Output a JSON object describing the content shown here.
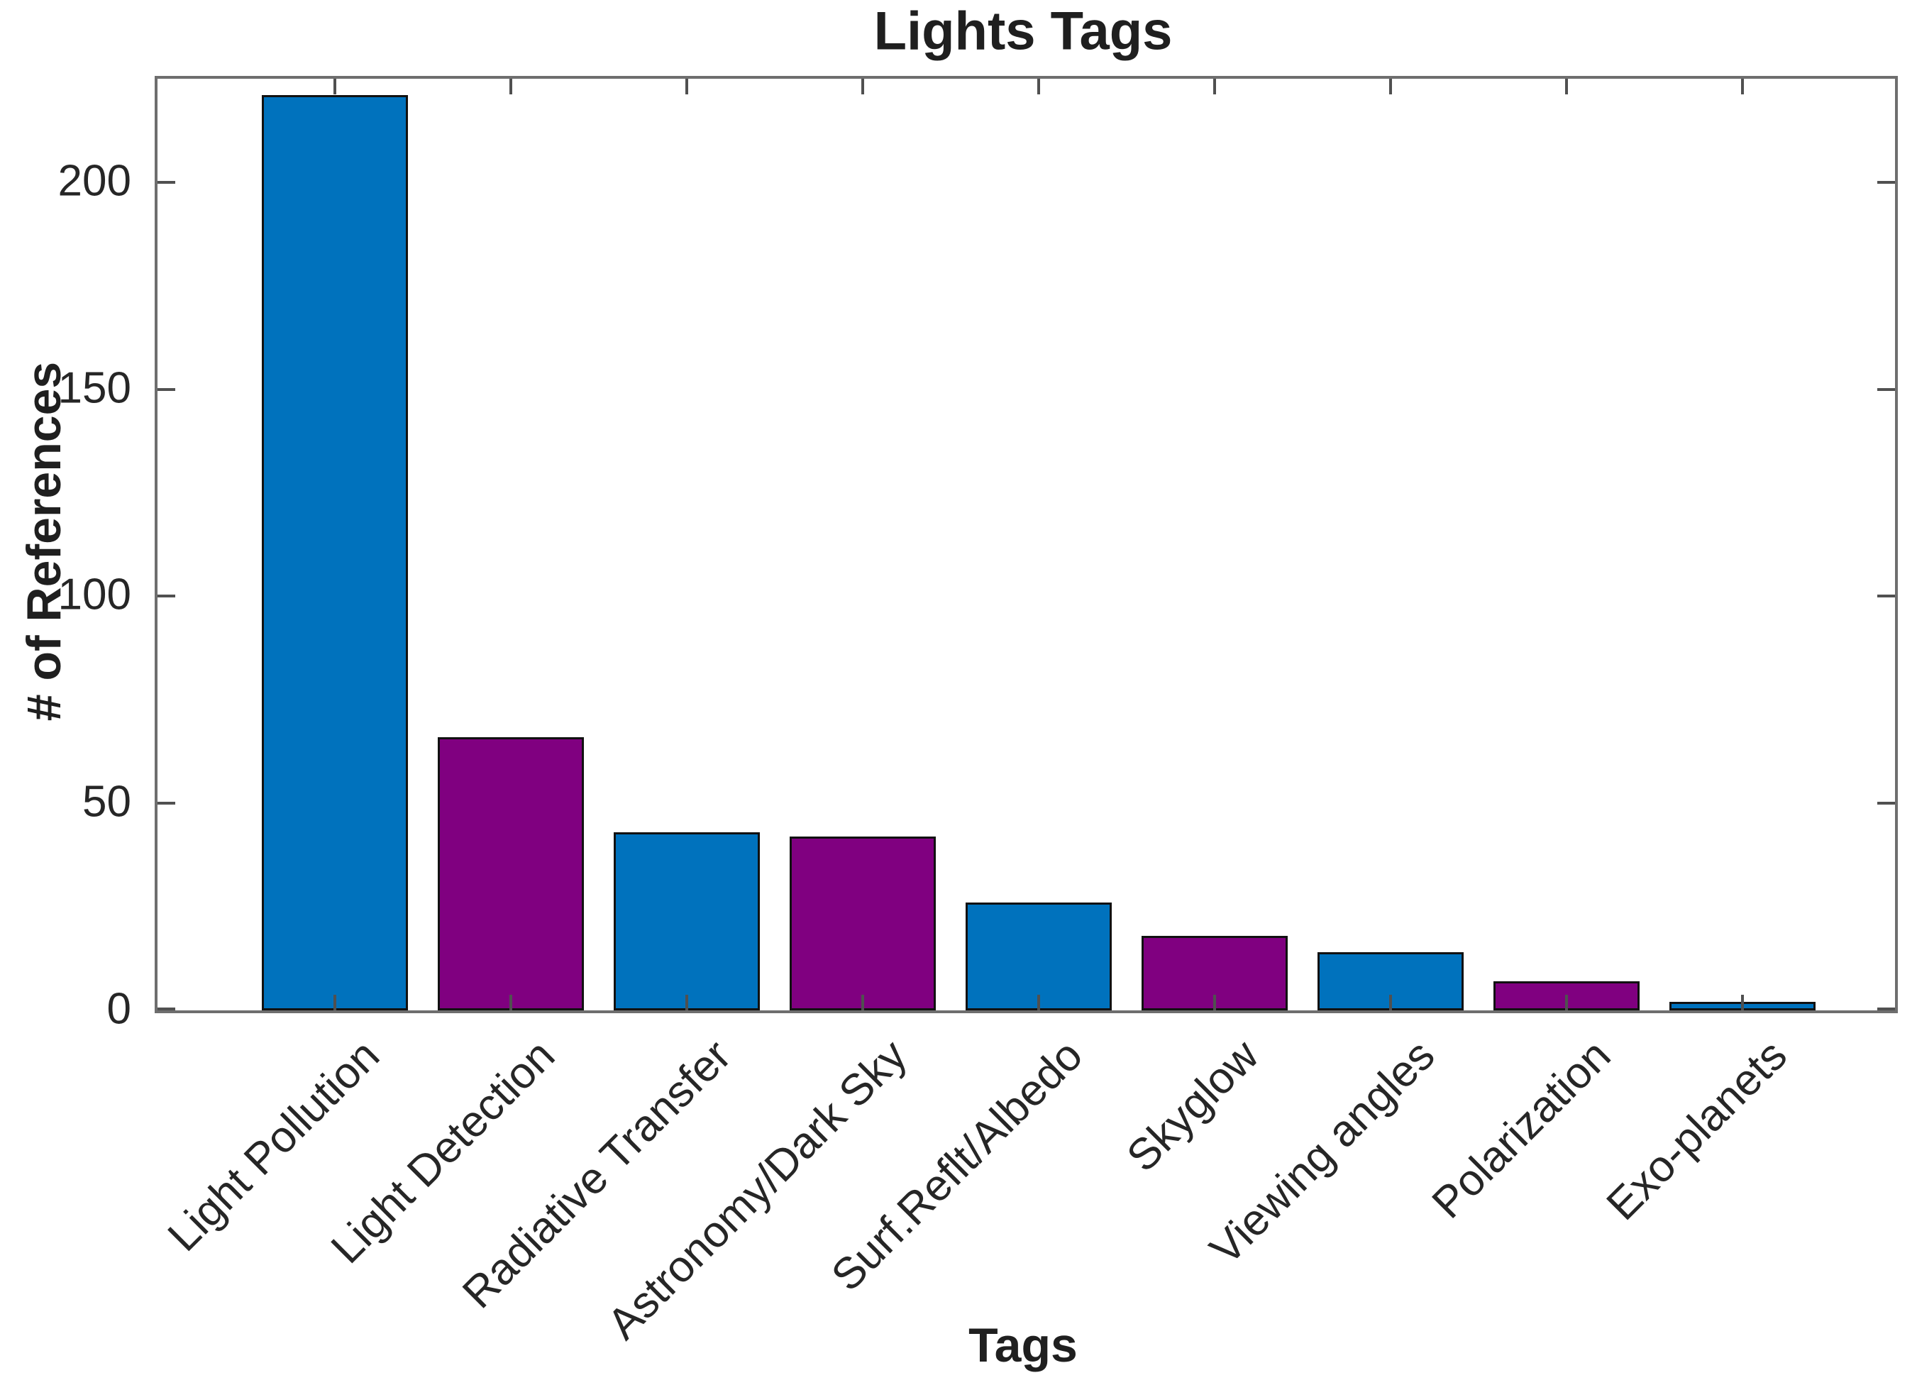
{
  "chart_data": {
    "type": "bar",
    "title": "Lights Tags",
    "xlabel": "Tags",
    "ylabel": "# of References",
    "categories": [
      "Light Pollution",
      "Light Detection",
      "Radiative Transfer",
      "Astronomy/Dark Sky",
      "Surf.Reflt/Albedo",
      "Skyglow",
      "Viewing angles",
      "Polarization",
      "Exo-planets"
    ],
    "values": [
      220,
      65,
      42,
      41,
      25,
      17,
      13,
      6,
      1
    ],
    "bar_colors": [
      "#0072BD",
      "#800080",
      "#0072BD",
      "#800080",
      "#0072BD",
      "#800080",
      "#0072BD",
      "#800080",
      "#0072BD"
    ],
    "series_palette": {
      "blue": "#0072BD",
      "purple": "#800080"
    },
    "bar_edge_color": "#111111",
    "axis_color": "#6e6e6e",
    "text_color": "#262626",
    "ylim": [
      0,
      225
    ],
    "yticks": [
      0,
      50,
      100,
      150,
      200
    ],
    "grid": false,
    "legend": null,
    "x_tick_label_rotation_deg": 45
  }
}
